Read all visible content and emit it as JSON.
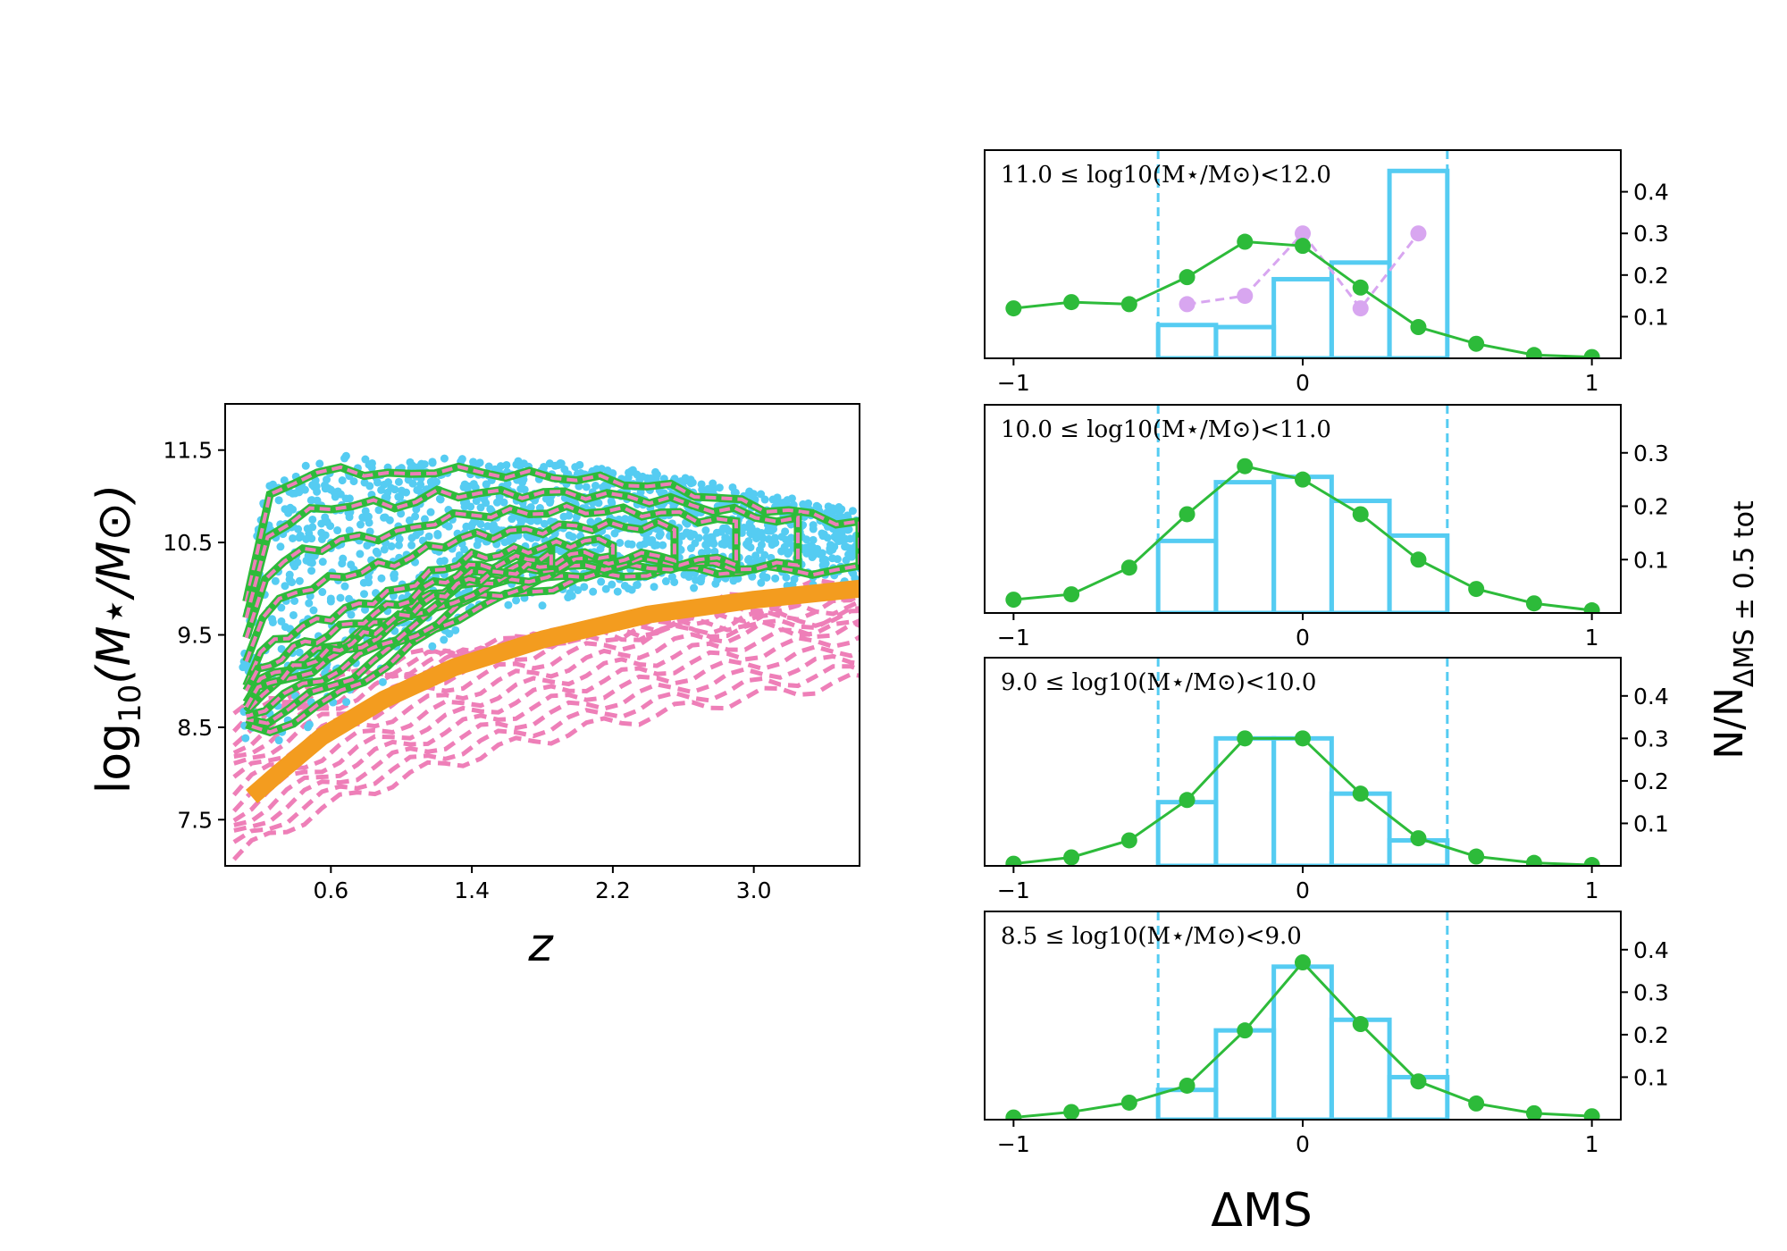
{
  "colors": {
    "cyan": "#55ccf2",
    "green": "#2dbb3a",
    "pink": "#ee7fb8",
    "orange": "#f39c1f",
    "violet": "#d8a6f0"
  },
  "chart_data": [
    {
      "type": "scatter",
      "xlabel": "z",
      "ylabel": "log10(M⋆/M⊙)",
      "xlim": [
        0.0,
        3.6
      ],
      "ylim": [
        7.0,
        12.0
      ],
      "xticks": [
        "0.6",
        "1.4",
        "2.2",
        "3.0"
      ],
      "yticks": [
        "7.5",
        "8.5",
        "9.5",
        "10.5",
        "11.5"
      ],
      "mass_limit_curve": {
        "x": [
          0.15,
          0.3,
          0.55,
          0.9,
          1.3,
          1.8,
          2.4,
          3.0,
          3.6
        ],
        "y": [
          7.75,
          8.0,
          8.4,
          8.8,
          9.15,
          9.45,
          9.72,
          9.88,
          10.0
        ]
      },
      "green_contours_top_edge": {
        "x": [
          0.1,
          0.2,
          0.4,
          0.7,
          1.0,
          1.2,
          1.5,
          2.0,
          2.5,
          3.0,
          3.6
        ],
        "y": [
          9.6,
          10.9,
          11.2,
          11.3,
          11.2,
          11.3,
          11.25,
          11.2,
          11.1,
          10.9,
          10.7
        ]
      },
      "green_contours_bottom_edge": {
        "x": [
          0.1,
          0.2,
          0.4,
          0.7,
          1.0,
          1.4,
          2.0,
          2.5
        ],
        "y": [
          8.5,
          8.4,
          8.6,
          8.9,
          9.3,
          9.8,
          10.1,
          10.2
        ]
      },
      "pink_contours_extent": {
        "z_min": 0.0,
        "z_max": 3.6,
        "logM_min": 7.0,
        "logM_max": 10.2
      }
    },
    {
      "type": "histogram",
      "label": "11.0 ≤ log10(M⋆/M⊙)<12.0",
      "xlim": [
        -1.1,
        1.1
      ],
      "ylim": [
        0.0,
        0.5
      ],
      "yticks": [
        "0.1",
        "0.2",
        "0.3",
        "0.4"
      ],
      "xticks": [
        "−1",
        "0",
        "1"
      ],
      "vlines": [
        -0.5,
        0.5
      ],
      "bins": [
        -0.5,
        -0.3,
        -0.1,
        0.1,
        0.3,
        0.5
      ],
      "hist": [
        0.08,
        0.075,
        0.19,
        0.23,
        0.45
      ],
      "green_line": {
        "x": [
          -1.0,
          -0.8,
          -0.6,
          -0.4,
          -0.2,
          0.0,
          0.2,
          0.4,
          0.6,
          0.8,
          1.0
        ],
        "y": [
          0.12,
          0.135,
          0.13,
          0.195,
          0.28,
          0.27,
          0.17,
          0.075,
          0.035,
          0.008,
          0.003
        ]
      },
      "violet_line": {
        "x": [
          -0.4,
          -0.2,
          0.0,
          0.2,
          0.4
        ],
        "y": [
          0.13,
          0.15,
          0.3,
          0.12,
          0.3
        ]
      }
    },
    {
      "type": "histogram",
      "label": "10.0 ≤ log10(M⋆/M⊙)<11.0",
      "xlim": [
        -1.1,
        1.1
      ],
      "ylim": [
        0.0,
        0.39
      ],
      "yticks": [
        "0.1",
        "0.2",
        "0.3"
      ],
      "xticks": [
        "−1",
        "0",
        "1"
      ],
      "vlines": [
        -0.5,
        0.5
      ],
      "bins": [
        -0.5,
        -0.3,
        -0.1,
        0.1,
        0.3,
        0.5
      ],
      "hist": [
        0.135,
        0.245,
        0.255,
        0.21,
        0.145
      ],
      "green_line": {
        "x": [
          -1.0,
          -0.8,
          -0.6,
          -0.4,
          -0.2,
          0.0,
          0.2,
          0.4,
          0.6,
          0.8,
          1.0
        ],
        "y": [
          0.025,
          0.035,
          0.085,
          0.185,
          0.275,
          0.25,
          0.185,
          0.1,
          0.045,
          0.018,
          0.005
        ]
      }
    },
    {
      "type": "histogram",
      "label": "9.0 ≤ log10(M⋆/M⊙)<10.0",
      "xlim": [
        -1.1,
        1.1
      ],
      "ylim": [
        0.0,
        0.49
      ],
      "yticks": [
        "0.1",
        "0.2",
        "0.3",
        "0.4"
      ],
      "xticks": [
        "−1",
        "0",
        "1"
      ],
      "vlines": [
        -0.5,
        0.5
      ],
      "bins": [
        -0.5,
        -0.3,
        -0.1,
        0.1,
        0.3,
        0.5
      ],
      "hist": [
        0.15,
        0.3,
        0.3,
        0.17,
        0.06
      ],
      "green_line": {
        "x": [
          -1.0,
          -0.8,
          -0.6,
          -0.4,
          -0.2,
          0.0,
          0.2,
          0.4,
          0.6,
          0.8,
          1.0
        ],
        "y": [
          0.005,
          0.02,
          0.06,
          0.155,
          0.3,
          0.3,
          0.17,
          0.065,
          0.022,
          0.007,
          0.002
        ]
      }
    },
    {
      "type": "histogram",
      "label": "8.5 ≤ log10(M⋆/M⊙)<9.0",
      "xlim": [
        -1.1,
        1.1
      ],
      "ylim": [
        0.0,
        0.49
      ],
      "yticks": [
        "0.1",
        "0.2",
        "0.3",
        "0.4"
      ],
      "xticks": [
        "−1",
        "0",
        "1"
      ],
      "vlines": [
        -0.5,
        0.5
      ],
      "bins": [
        -0.5,
        -0.3,
        -0.1,
        0.1,
        0.3,
        0.5
      ],
      "hist": [
        0.07,
        0.21,
        0.36,
        0.235,
        0.1
      ],
      "green_line": {
        "x": [
          -1.0,
          -0.8,
          -0.6,
          -0.4,
          -0.2,
          0.0,
          0.2,
          0.4,
          0.6,
          0.8,
          1.0
        ],
        "y": [
          0.005,
          0.018,
          0.04,
          0.08,
          0.21,
          0.37,
          0.225,
          0.09,
          0.038,
          0.015,
          0.008
        ]
      }
    }
  ],
  "labels": {
    "right_ylabel_main": "N/N",
    "right_ylabel_sub": "ΔMS ± 0.5 tot",
    "right_xlabel": "ΔMS",
    "left_xlabel": "z",
    "left_ylabel_log": "log",
    "left_ylabel_sub": "10",
    "left_ylabel_rest": "(M⋆/M⊙)"
  }
}
